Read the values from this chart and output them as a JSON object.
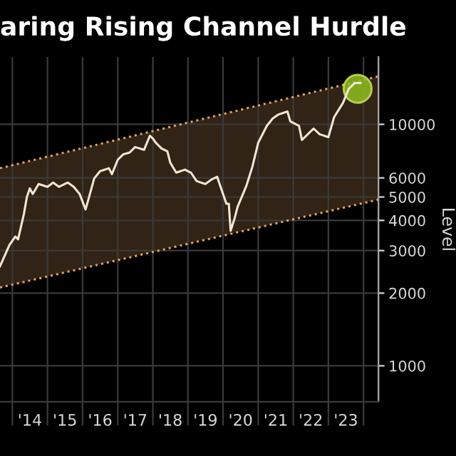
{
  "chart_data": {
    "type": "line",
    "title": "aring Rising Channel Hurdle",
    "ylabel": "Level",
    "log": "y",
    "grid": true,
    "x": [
      "2013-08-25",
      "2013-12",
      "2014-02",
      "2014-03",
      "2014-05",
      "2014-06",
      "2014-07",
      "2014-08",
      "2014-10",
      "2015-01",
      "2015-03",
      "2015-05",
      "2015-08",
      "2015-10",
      "2015-12",
      "2016-02",
      "2016-03",
      "2016-05",
      "2016-07",
      "2016-10",
      "2016-11",
      "2017-01",
      "2017-03",
      "2017-05",
      "2017-07",
      "2017-10",
      "2017-12",
      "2018-01",
      "2018-02",
      "2018-04",
      "2018-06",
      "2018-07",
      "2018-09",
      "2018-12",
      "2019-02",
      "2019-04",
      "2019-07",
      "2019-09",
      "2019-11",
      "2020-02-05",
      "2020-03-01",
      "2020-03-20",
      "2020-05",
      "2020-06",
      "2020-09",
      "2020-11",
      "2021-01",
      "2021-04",
      "2021-06",
      "2021-08",
      "2021-11",
      "2021-12",
      "2022-03",
      "2022-04",
      "2022-07",
      "2022-08",
      "2022-10",
      "2023-01",
      "2023-03",
      "2023-06",
      "2023-08",
      "2023-10",
      "2023-12"
    ],
    "series": [
      {
        "color": "#e0a060",
        "line_style": "dotted",
        "x": [
          "2013-08-25",
          "2024-06-05"
        ],
        "values": [
          6580,
          15800
        ],
        "lower": [
          2110,
          4880
        ],
        "upper": [
          6580,
          15800
        ]
      },
      {
        "color": "#e0a060",
        "line_style": "dotted",
        "x": [
          "2013-08-25",
          "2024-06-05"
        ],
        "values": [
          2110,
          4880
        ]
      },
      {
        "color": "#f0e6d2",
        "line_style": "solid",
        "values": [
          2582,
          3162,
          3430,
          3340,
          4260,
          5010,
          5430,
          5150,
          5660,
          5510,
          5740,
          5510,
          5740,
          5510,
          5150,
          4440,
          4880,
          5970,
          6400,
          6580,
          6220,
          7130,
          7520,
          7630,
          8050,
          7840,
          8970,
          8730,
          8390,
          7940,
          7730,
          6940,
          6310,
          6490,
          6310,
          5820,
          5660,
          5900,
          6060,
          4690,
          4690,
          3620,
          4090,
          4560,
          5580,
          6670,
          8390,
          9860,
          10570,
          10990,
          11300,
          10280,
          9860,
          8610,
          9350,
          9600,
          9100,
          8850,
          10700,
          12250,
          14030,
          14820,
          14820
        ]
      },
      {
        "type": "scatter",
        "color": "#8fbf1f",
        "marker": "circle",
        "x": [
          "2023-11"
        ],
        "values": [
          14030
        ]
      }
    ],
    "xlim": [
      "2013-08-25",
      "2024-06-05"
    ],
    "xticks": [
      {
        "value": "2014-01-01",
        "label": null
      },
      {
        "value": "2014-07-02",
        "label": "'14"
      },
      {
        "value": "2015-01-01",
        "label": null
      },
      {
        "value": "2015-07-02",
        "label": "'15"
      },
      {
        "value": "2016-01-01",
        "label": null
      },
      {
        "value": "2016-07-02",
        "label": "'16"
      },
      {
        "value": "2017-01-01",
        "label": null
      },
      {
        "value": "2017-07-02",
        "label": "'17"
      },
      {
        "value": "2018-01-01",
        "label": null
      },
      {
        "value": "2018-07-02",
        "label": "'18"
      },
      {
        "value": "2019-01-01",
        "label": null
      },
      {
        "value": "2019-07-02",
        "label": "'19"
      },
      {
        "value": "2020-01-01",
        "label": null
      },
      {
        "value": "2020-07-02",
        "label": "'20"
      },
      {
        "value": "2021-01-01",
        "label": null
      },
      {
        "value": "2021-07-02",
        "label": "'21"
      },
      {
        "value": "2022-01-01",
        "label": null
      },
      {
        "value": "2022-07-02",
        "label": "'22"
      },
      {
        "value": "2023-01-01",
        "label": null
      },
      {
        "value": "2023-07-02",
        "label": "'23"
      },
      {
        "value": "2024-01-01",
        "label": null
      }
    ],
    "ylim": [
      710,
      19000
    ],
    "yticks": [
      1000,
      2000,
      3000,
      4000,
      5000,
      6000,
      10000
    ]
  }
}
